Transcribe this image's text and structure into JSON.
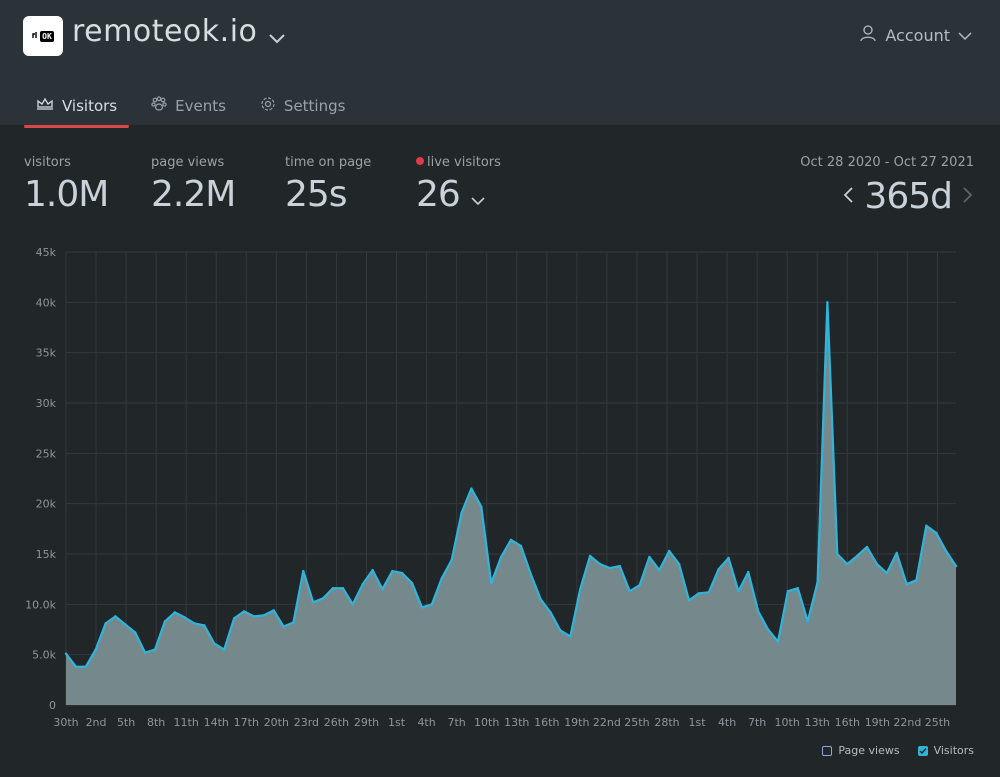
{
  "header": {
    "logo_text": "ОК",
    "site_name": "remoteok.io",
    "account_label": "Account",
    "tabs": [
      {
        "label": "Visitors",
        "icon": "crown-icon",
        "active": true
      },
      {
        "label": "Events",
        "icon": "paw-icon",
        "active": false
      },
      {
        "label": "Settings",
        "icon": "gear-icon",
        "active": false
      }
    ]
  },
  "stats": {
    "visitors": {
      "label": "visitors",
      "value": "1.0M"
    },
    "page_views": {
      "label": "page views",
      "value": "2.2M"
    },
    "time_on_page": {
      "label": "time on page",
      "value": "25s"
    },
    "live_visitors": {
      "label": "live visitors",
      "value": "26"
    }
  },
  "range": {
    "dates": "Oct 28 2020 - Oct 27 2021",
    "value": "365d"
  },
  "legend": {
    "page_views": "Page views",
    "visitors": "Visitors"
  },
  "colors": {
    "accent_red": "#d94848",
    "line": "#2fb5db",
    "fill": "#75888b",
    "live_dot": "#e03a48"
  },
  "chart_data": {
    "type": "area",
    "series": [
      {
        "name": "Visitors",
        "values": [
          5100,
          3800,
          3800,
          5500,
          8100,
          8800,
          8000,
          7200,
          5200,
          5500,
          8300,
          9200,
          8700,
          8100,
          7900,
          6100,
          5500,
          8600,
          9300,
          8800,
          8900,
          9400,
          7800,
          8200,
          13300,
          10200,
          10600,
          11600,
          11600,
          10000,
          12000,
          13400,
          11500,
          13300,
          13100,
          12100,
          9700,
          10000,
          12600,
          14400,
          19100,
          21500,
          19700,
          12100,
          14700,
          16400,
          15800,
          13000,
          10500,
          9200,
          7400,
          6800,
          11500,
          14800,
          14000,
          13600,
          13800,
          11300,
          11900,
          14700,
          13400,
          15300,
          14000,
          10400,
          11100,
          11200,
          13500,
          14600,
          11300,
          13200,
          9300,
          7500,
          6300,
          11300,
          11600,
          8300,
          12200,
          40000,
          15000,
          14000,
          14800,
          15700,
          14000,
          13100,
          15100,
          12000,
          12400,
          17800,
          17100,
          15300,
          13800
        ]
      }
    ],
    "x_tick_labels": [
      "30th",
      "2nd",
      "5th",
      "8th",
      "11th",
      "14th",
      "17th",
      "20th",
      "23rd",
      "26th",
      "29th",
      "1st",
      "4th",
      "7th",
      "10th",
      "13th",
      "16th",
      "19th",
      "22nd",
      "25th",
      "28th",
      "1st",
      "4th",
      "7th",
      "10th",
      "13th",
      "16th",
      "19th",
      "22nd",
      "25th"
    ],
    "y_tick_labels": [
      "0",
      "5.0k",
      "10.0k",
      "15k",
      "20k",
      "25k",
      "30k",
      "35k",
      "40k",
      "45k"
    ],
    "ylim": [
      0,
      45000
    ],
    "grid": true
  }
}
